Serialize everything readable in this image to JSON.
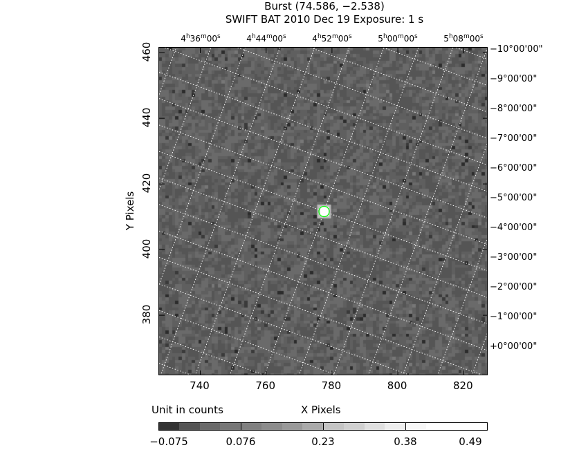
{
  "header": {
    "title": "Burst (74.586, −2.538)",
    "subtitle": "SWIFT BAT    2010 Dec 19     Exposure: 1 s"
  },
  "chart_data": {
    "type": "heatmap",
    "title": "Burst (74.586, −2.538)",
    "xlabel": "X Pixels",
    "ylabel": "Y Pixels",
    "xlim": [
      727.5,
      827.5
    ],
    "ylim": [
      361.5,
      461.5
    ],
    "x_ticks": [
      "740",
      "760",
      "780",
      "800",
      "820"
    ],
    "y_ticks": [
      "460",
      "440",
      "420",
      "400",
      "380"
    ],
    "ra_ticks": [
      "4h36m00s",
      "4h44m00s",
      "4h52m00s",
      "5h00m00s",
      "5h08m00s"
    ],
    "ra_tick_parts": [
      [
        "4",
        "36",
        "00"
      ],
      [
        "4",
        "44",
        "00"
      ],
      [
        "4",
        "52",
        "00"
      ],
      [
        "5",
        "00",
        "00"
      ],
      [
        "5",
        "08",
        "00"
      ]
    ],
    "dec_ticks": [
      "−10°00'00\"",
      "−9°00'00\"",
      "−8°00'00\"",
      "−7°00'00\"",
      "−6°00'00\"",
      "−5°00'00\"",
      "−4°00'00\"",
      "−3°00'00\"",
      "−2°00'00\"",
      "−1°00'00\"",
      "+0°00'00\""
    ],
    "grid": true,
    "source_marker": {
      "x": 777.6,
      "y": 411.6,
      "color": "#00ff00"
    },
    "colorbar": {
      "unit_label": "Unit in counts",
      "tick_labels": [
        "−0.075",
        "0.076",
        "0.23",
        "0.38",
        "0.49"
      ],
      "colors": [
        "#333333",
        "#555555",
        "#6a6a6a",
        "#777777",
        "#808080",
        "#8c8c8c",
        "#999999",
        "#aaaaaa",
        "#c4c4c4",
        "#d0d0d0",
        "#e0e0e0",
        "#eeeeee",
        "#f8f8f8",
        "#ffffff"
      ]
    }
  }
}
